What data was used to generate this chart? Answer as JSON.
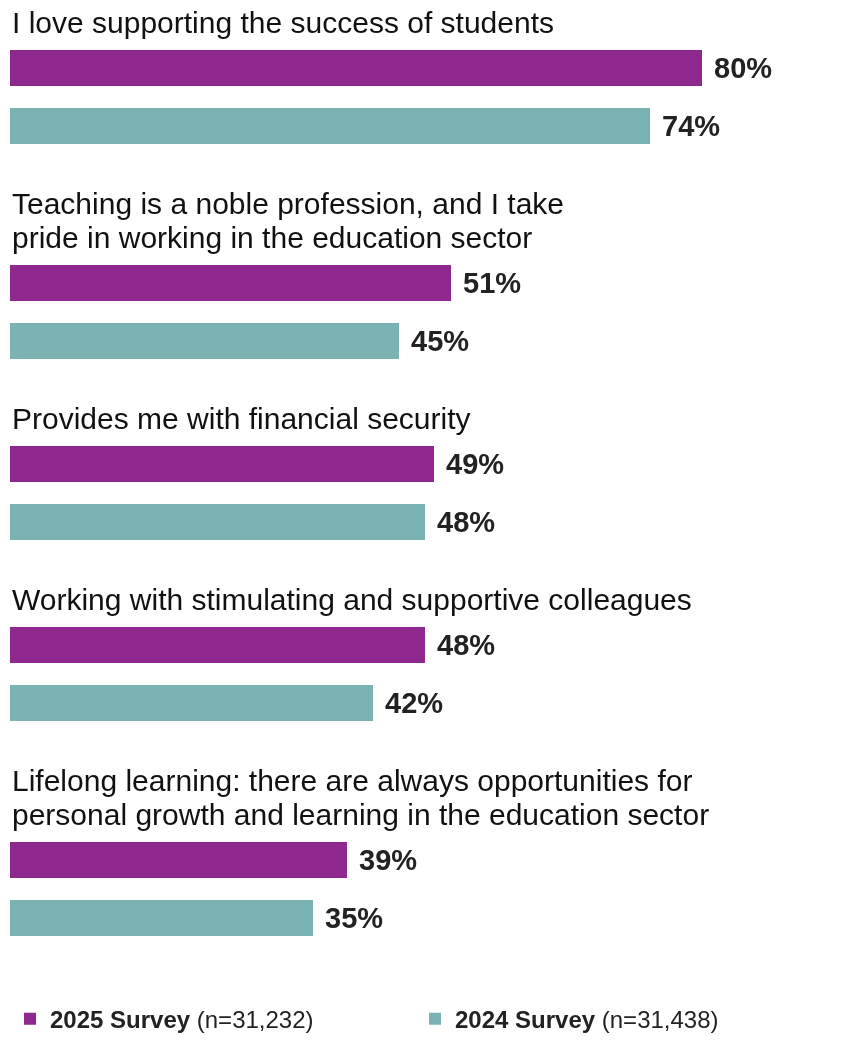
{
  "chart_data": {
    "type": "bar",
    "orientation": "horizontal",
    "categories": [
      "I love supporting the success of students",
      "Teaching is a noble profession, and I take\npride in working in the education sector",
      "Provides me with financial security",
      "Working with stimulating and supportive colleagues",
      "Lifelong learning: there are always opportunities for\npersonal growth and learning in the education sector"
    ],
    "series": [
      {
        "name": "2025 Survey (n=31,232)",
        "color": "#8e288e",
        "values": [
          80,
          51,
          49,
          48,
          39
        ],
        "value_labels": [
          "80%",
          "51%",
          "49%",
          "48%",
          "39%"
        ]
      },
      {
        "name": "2024 Survey (n=31,438)",
        "color": "#7bb3b3",
        "values": [
          74,
          45,
          48,
          42,
          35
        ],
        "value_labels": [
          "74%",
          "45%",
          "48%",
          "42%",
          "35%"
        ]
      }
    ],
    "tick_labels": false,
    "legend": "bottom"
  }
}
